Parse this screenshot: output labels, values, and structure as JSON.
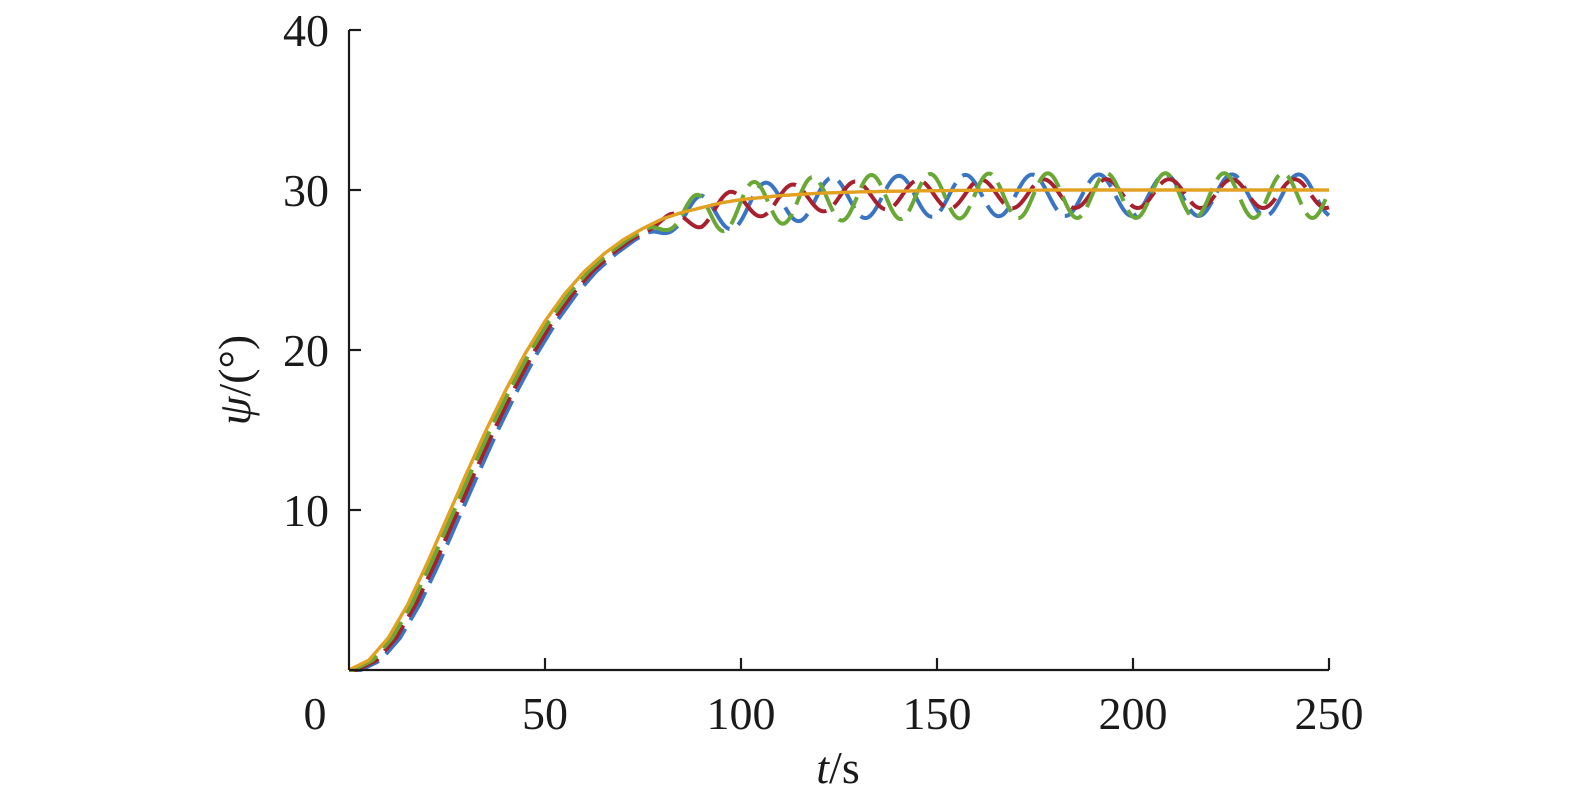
{
  "chart_data": {
    "type": "line",
    "title": "",
    "xlabel_var": "t",
    "xlabel_unit": "/s",
    "ylabel_var": "ψ",
    "ylabel_unit": "/(°)",
    "xlim": [
      0,
      250
    ],
    "ylim": [
      0,
      40
    ],
    "x_ticks": [
      0,
      50,
      100,
      150,
      200,
      250
    ],
    "x_tick_labels": [
      "0",
      "50",
      "100",
      "150",
      "200",
      "250"
    ],
    "y_ticks": [
      10,
      20,
      30,
      40
    ],
    "y_tick_labels": [
      "10",
      "20",
      "30",
      "40"
    ],
    "grid": false,
    "legend": "none",
    "series": [
      {
        "color": "#3a75c4",
        "delay": 3.0,
        "ripple": 1.3,
        "period": 17,
        "phase": 0.0
      },
      {
        "color": "#a8202e",
        "delay": 2.0,
        "ripple": 0.9,
        "period": 16,
        "phase": 1.1
      },
      {
        "color": "#6aa835",
        "delay": 1.0,
        "ripple": 1.4,
        "period": 15,
        "phase": 2.3
      },
      {
        "color": "#e07b2a",
        "delay": 0.0,
        "ripple": 0.0,
        "period": 15,
        "phase": 0.0
      },
      {
        "color": "#e2a21f",
        "delay": 0.0,
        "ripple": 0.0,
        "period": 15,
        "phase": 0.0
      }
    ],
    "reference": {
      "x": [
        0,
        5,
        10,
        15,
        20,
        25,
        30,
        35,
        40,
        45,
        50,
        55,
        60,
        65,
        70,
        75,
        80,
        85,
        90,
        95,
        100,
        110,
        120,
        130,
        140,
        150,
        160,
        170,
        180,
        200,
        220,
        250
      ],
      "y": [
        0,
        0.6,
        2.0,
        4.1,
        6.7,
        9.5,
        12.3,
        15.0,
        17.5,
        19.8,
        21.8,
        23.5,
        24.9,
        26.0,
        26.9,
        27.6,
        28.2,
        28.6,
        28.9,
        29.2,
        29.4,
        29.65,
        29.8,
        29.88,
        29.93,
        29.96,
        29.98,
        29.99,
        30.0,
        30.0,
        30.0,
        30.0
      ]
    }
  }
}
